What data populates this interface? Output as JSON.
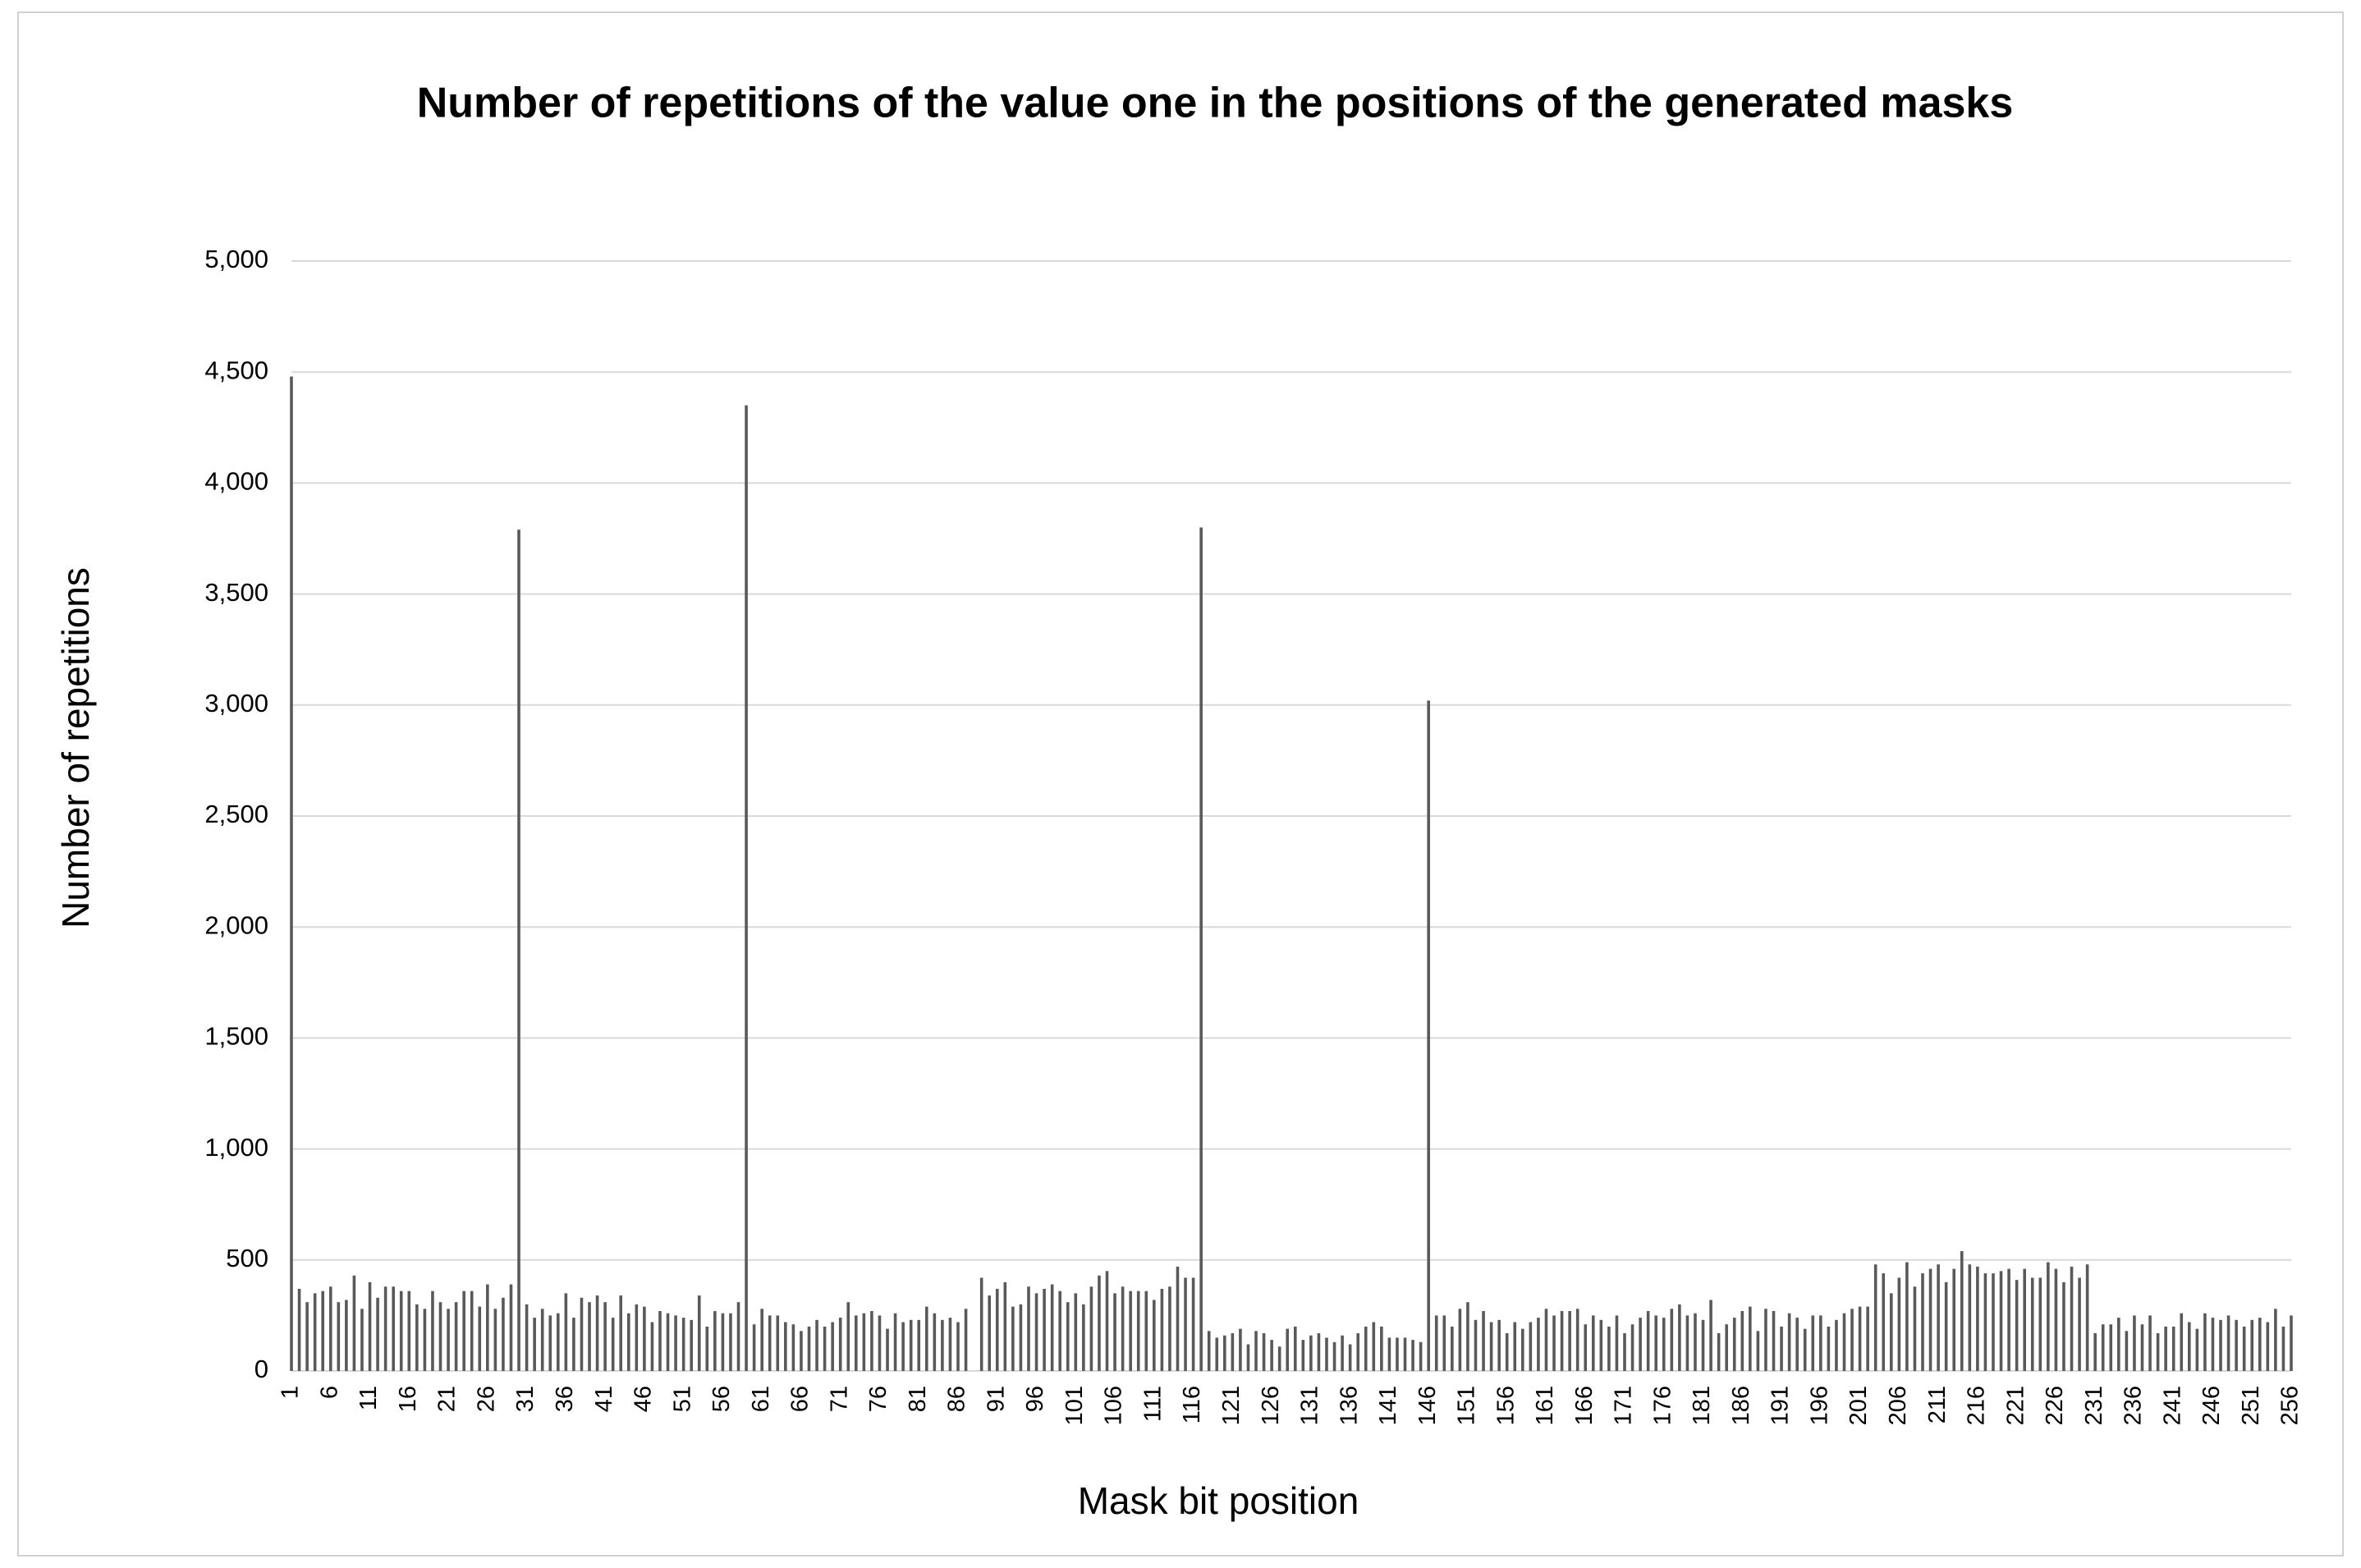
{
  "chart_data": {
    "type": "bar",
    "title": "Number of repetitions of the value one in the positions of the generated masks",
    "x_label": "Mask bit position",
    "y_label": "Number of repetitions",
    "color": "#595959",
    "grid": true,
    "ylim": [
      0,
      5000
    ],
    "yticks": [
      0,
      500,
      {
        "value": 1000,
        "label": "1,000"
      },
      {
        "value": 1500,
        "label": "1,500"
      },
      {
        "value": 2000,
        "label": "2,000"
      },
      {
        "value": 2500,
        "label": "2,500"
      },
      {
        "value": 3000,
        "label": "3,000"
      },
      {
        "value": 3500,
        "label": "3,500"
      },
      {
        "value": 4000,
        "label": "4,000"
      },
      {
        "value": 4500,
        "label": "4,500"
      },
      {
        "value": 5000,
        "label": "5,000"
      }
    ],
    "categories": [
      "1",
      null,
      null,
      null,
      null,
      "6",
      null,
      null,
      null,
      null,
      "11",
      null,
      null,
      null,
      null,
      "16",
      null,
      null,
      null,
      null,
      "21",
      null,
      null,
      null,
      null,
      "26",
      null,
      null,
      null,
      null,
      "31",
      null,
      null,
      null,
      null,
      "36",
      null,
      null,
      null,
      null,
      "41",
      null,
      null,
      null,
      null,
      "46",
      null,
      null,
      null,
      null,
      "51",
      null,
      null,
      null,
      null,
      "56",
      null,
      null,
      null,
      null,
      "61",
      null,
      null,
      null,
      null,
      "66",
      null,
      null,
      null,
      null,
      "71",
      null,
      null,
      null,
      null,
      "76",
      null,
      null,
      null,
      null,
      "81",
      null,
      null,
      null,
      null,
      "86",
      null,
      null,
      null,
      null,
      "91",
      null,
      null,
      null,
      null,
      "96",
      null,
      null,
      null,
      null,
      "101",
      null,
      null,
      null,
      null,
      "106",
      null,
      null,
      null,
      null,
      "111",
      null,
      null,
      null,
      null,
      "116",
      null,
      null,
      null,
      null,
      "121",
      null,
      null,
      null,
      null,
      "126",
      null,
      null,
      null,
      null,
      "131",
      null,
      null,
      null,
      null,
      "136",
      null,
      null,
      null,
      null,
      "141",
      null,
      null,
      null,
      null,
      "146",
      null,
      null,
      null,
      null,
      "151",
      null,
      null,
      null,
      null,
      "156",
      null,
      null,
      null,
      null,
      "161",
      null,
      null,
      null,
      null,
      "166",
      null,
      null,
      null,
      null,
      "171",
      null,
      null,
      null,
      null,
      "176",
      null,
      null,
      null,
      null,
      "181",
      null,
      null,
      null,
      null,
      "186",
      null,
      null,
      null,
      null,
      "191",
      null,
      null,
      null,
      null,
      "196",
      null,
      null,
      null,
      null,
      "201",
      null,
      null,
      null,
      null,
      "206",
      null,
      null,
      null,
      null,
      "211",
      null,
      null,
      null,
      null,
      "216",
      null,
      null,
      null,
      null,
      "221",
      null,
      null,
      null,
      null,
      "226",
      null,
      null,
      null,
      null,
      "231",
      null,
      null,
      null,
      null,
      "236",
      null,
      null,
      null,
      null,
      "241",
      null,
      null,
      null,
      null,
      "246",
      null,
      null,
      null,
      null,
      "251",
      null,
      null,
      null,
      null,
      "256"
    ],
    "values": [
      4480,
      370,
      310,
      350,
      360,
      380,
      310,
      320,
      430,
      280,
      400,
      330,
      380,
      380,
      360,
      360,
      300,
      280,
      360,
      310,
      280,
      310,
      360,
      360,
      290,
      390,
      280,
      330,
      390,
      3790,
      300,
      240,
      280,
      250,
      260,
      350,
      240,
      330,
      310,
      340,
      310,
      240,
      340,
      260,
      300,
      290,
      220,
      270,
      260,
      250,
      240,
      230,
      340,
      200,
      270,
      260,
      260,
      310,
      4350,
      210,
      280,
      250,
      250,
      220,
      210,
      180,
      200,
      230,
      200,
      220,
      240,
      310,
      250,
      260,
      270,
      250,
      190,
      260,
      220,
      230,
      230,
      290,
      260,
      230,
      240,
      220,
      280,
      0,
      420,
      340,
      370,
      400,
      290,
      300,
      380,
      350,
      370,
      390,
      360,
      310,
      350,
      300,
      380,
      430,
      450,
      350,
      380,
      360,
      360,
      360,
      320,
      370,
      380,
      470,
      420,
      420,
      3800,
      180,
      150,
      160,
      170,
      190,
      120,
      180,
      170,
      140,
      110,
      190,
      200,
      140,
      160,
      170,
      150,
      130,
      160,
      120,
      170,
      200,
      220,
      200,
      150,
      150,
      150,
      140,
      130,
      3020,
      250,
      250,
      200,
      280,
      310,
      230,
      270,
      220,
      230,
      170,
      220,
      190,
      220,
      240,
      280,
      250,
      270,
      270,
      280,
      210,
      250,
      230,
      200,
      250,
      170,
      210,
      240,
      270,
      250,
      240,
      280,
      300,
      250,
      260,
      230,
      320,
      170,
      210,
      240,
      270,
      290,
      180,
      280,
      270,
      200,
      260,
      240,
      190,
      250,
      250,
      200,
      230,
      260,
      280,
      290,
      290,
      480,
      440,
      350,
      420,
      490,
      380,
      440,
      460,
      480,
      400,
      460,
      540,
      480,
      470,
      440,
      440,
      450,
      460,
      410,
      460,
      420,
      420,
      490,
      460,
      400,
      470,
      420,
      480,
      170,
      210,
      210,
      240,
      180,
      250,
      210,
      250,
      170,
      200,
      200,
      260,
      220,
      190,
      260,
      240,
      230,
      250,
      230,
      200,
      230,
      240,
      220,
      280,
      200,
      250
    ]
  }
}
